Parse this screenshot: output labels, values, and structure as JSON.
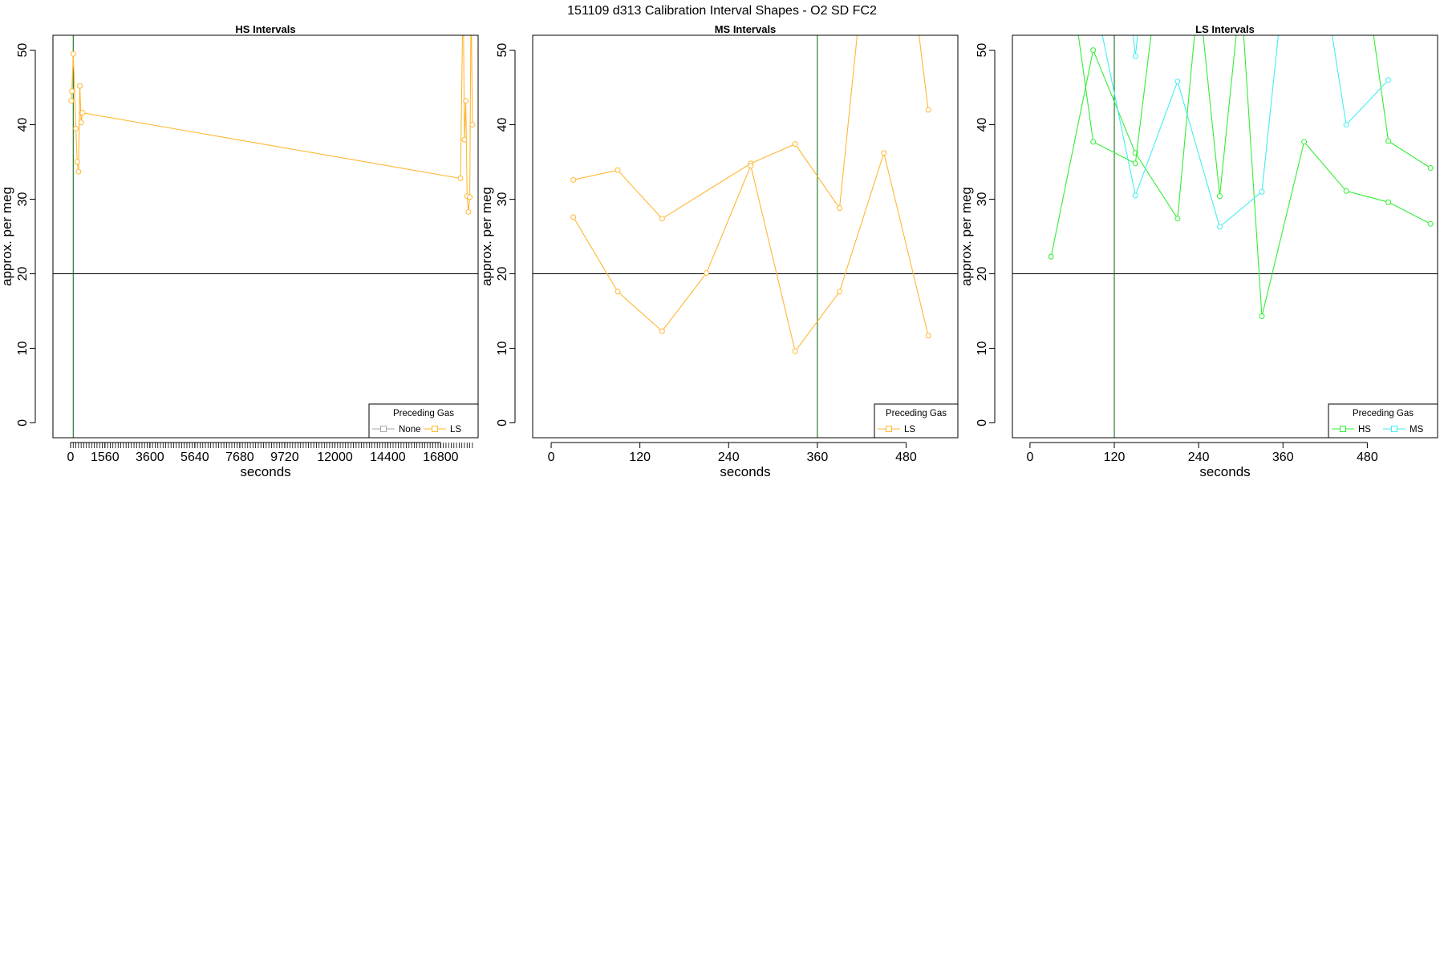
{
  "figure": {
    "title": "151109   d313   Calibration Interval Shapes - O2 SD FC2"
  },
  "chart_data": [
    {
      "type": "line",
      "title": "HS Intervals",
      "xlabel": "seconds",
      "ylabel": "approx. per meg",
      "xlim": [
        -800,
        18500
      ],
      "ylim": [
        -2,
        52
      ],
      "xticks": [
        0,
        1560,
        3600,
        5640,
        7680,
        9720,
        12000,
        14400,
        16800
      ],
      "yticks": [
        0,
        10,
        20,
        30,
        40,
        50
      ],
      "hline": 20,
      "vline": 120,
      "legend": {
        "title": "Preceding Gas",
        "position": "bottom-right",
        "entries": [
          {
            "name": "None",
            "color": "#a6a6a6"
          },
          {
            "name": "LS",
            "color": "#ffb733"
          }
        ]
      },
      "series": [
        {
          "name": "None",
          "color": "#a6a6a6",
          "points": []
        },
        {
          "name": "LS",
          "color": "#ffb733",
          "points": [
            [
              30,
              43.2
            ],
            [
              60,
              44.5
            ],
            [
              120,
              49.5
            ],
            [
              240,
              39.5
            ],
            [
              300,
              35.0
            ],
            [
              360,
              33.7
            ],
            [
              420,
              45.2
            ],
            [
              480,
              40.3
            ],
            [
              540,
              41.6
            ],
            [
              17700,
              32.8
            ],
            [
              17820,
              58.0
            ],
            [
              17880,
              38.0
            ],
            [
              17940,
              43.2
            ],
            [
              18000,
              30.4
            ],
            [
              18060,
              28.3
            ],
            [
              18120,
              30.3
            ],
            [
              18180,
              58.0
            ],
            [
              18240,
              40.0
            ]
          ]
        }
      ]
    },
    {
      "type": "line",
      "title": "MS Intervals",
      "xlabel": "seconds",
      "ylabel": "approx. per meg",
      "xlim": [
        -25,
        550
      ],
      "ylim": [
        -2,
        52
      ],
      "xticks": [
        0,
        120,
        240,
        360,
        480
      ],
      "yticks": [
        0,
        10,
        20,
        30,
        40,
        50
      ],
      "hline": 20,
      "vline": 360,
      "legend": {
        "title": "Preceding Gas",
        "position": "bottom-right",
        "entries": [
          {
            "name": "LS",
            "color": "#ffb733"
          }
        ]
      },
      "series": [
        {
          "name": "LS",
          "color": "#ffb733",
          "points": [
            [
              30,
              32.6
            ],
            [
              90,
              33.9
            ],
            [
              150,
              27.4
            ],
            [
              270,
              34.8
            ],
            [
              330,
              37.4
            ],
            [
              390,
              28.8
            ],
            [
              420,
              58.0
            ]
          ]
        },
        {
          "name": "LS",
          "color": "#ffb733",
          "points": [
            [
              30,
              27.6
            ],
            [
              90,
              17.6
            ],
            [
              150,
              12.3
            ],
            [
              210,
              20.1
            ],
            [
              270,
              34.5
            ],
            [
              330,
              9.6
            ],
            [
              390,
              17.6
            ],
            [
              450,
              36.2
            ],
            [
              510,
              11.7
            ]
          ]
        },
        {
          "name": "LS",
          "color": "#ffb733",
          "points": [
            [
              490,
              58.0
            ],
            [
              510,
              42.0
            ]
          ]
        }
      ]
    },
    {
      "type": "line",
      "title": "LS Intervals",
      "xlabel": "seconds",
      "ylabel": "approx. per meg",
      "xlim": [
        -25,
        580
      ],
      "ylim": [
        -2,
        52
      ],
      "xticks": [
        0,
        120,
        240,
        360,
        480
      ],
      "yticks": [
        0,
        10,
        20,
        30,
        40,
        50
      ],
      "hline": 20,
      "vline": 120,
      "legend": {
        "title": "Preceding Gas",
        "position": "bottom-right",
        "entries": [
          {
            "name": "HS",
            "color": "#33ee33"
          },
          {
            "name": "MS",
            "color": "#44eeee"
          }
        ]
      },
      "series": [
        {
          "name": "HS",
          "color": "#33ee33",
          "points": [
            [
              30,
              22.3
            ],
            [
              90,
              50.0
            ],
            [
              150,
              36.2
            ],
            [
              210,
              27.4
            ],
            [
              240,
              58.0
            ]
          ]
        },
        {
          "name": "HS",
          "color": "#33ee33",
          "points": [
            [
              60,
              58.0
            ],
            [
              90,
              37.7
            ],
            [
              150,
              34.8
            ],
            [
              180,
              58.0
            ]
          ]
        },
        {
          "name": "HS",
          "color": "#33ee33",
          "points": [
            [
              240,
              58.0
            ],
            [
              270,
              30.4
            ],
            [
              300,
              58.0
            ]
          ]
        },
        {
          "name": "HS",
          "color": "#33ee33",
          "points": [
            [
              300,
              58.0
            ],
            [
              330,
              14.3
            ],
            [
              390,
              37.7
            ],
            [
              450,
              31.1
            ],
            [
              510,
              29.6
            ],
            [
              570,
              26.7
            ]
          ]
        },
        {
          "name": "HS",
          "color": "#33ee33",
          "points": [
            [
              480,
              58.0
            ],
            [
              510,
              37.8
            ],
            [
              570,
              34.2
            ]
          ]
        },
        {
          "name": "MS",
          "color": "#44eeee",
          "points": [
            [
              90,
              58.0
            ],
            [
              150,
              30.5
            ],
            [
              210,
              45.8
            ],
            [
              270,
              26.3
            ],
            [
              330,
              31.0
            ],
            [
              360,
              58.0
            ]
          ]
        },
        {
          "name": "MS",
          "color": "#44eeee",
          "points": [
            [
              140,
              58.0
            ],
            [
              150,
              49.2
            ],
            [
              160,
              58.0
            ]
          ]
        },
        {
          "name": "MS",
          "color": "#44eeee",
          "points": [
            [
              420,
              58.0
            ],
            [
              450,
              40.0
            ],
            [
              510,
              46.0
            ]
          ]
        }
      ]
    }
  ]
}
